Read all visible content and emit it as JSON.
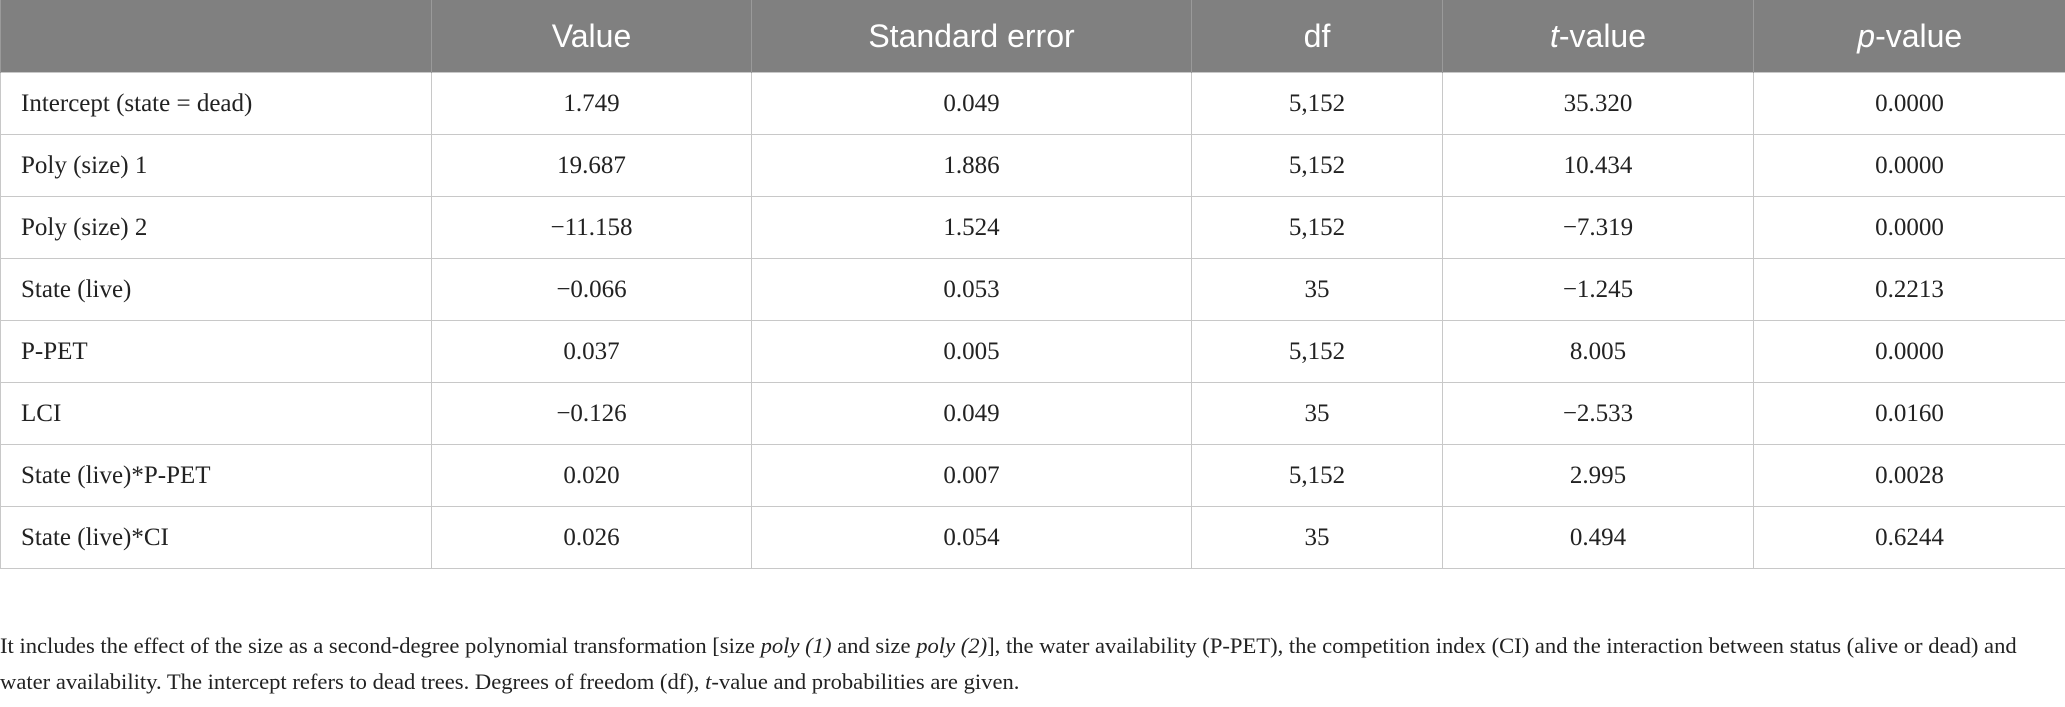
{
  "table": {
    "header": [
      [
        "Value"
      ],
      [
        "Standard error"
      ],
      [
        "df"
      ],
      [
        {
          "italic": "t"
        },
        "-value"
      ],
      [
        {
          "italic": "p"
        },
        "-value"
      ]
    ],
    "rows": [
      [
        "Intercept (state = dead)",
        "1.749",
        "0.049",
        "5,152",
        "35.320",
        "0.0000"
      ],
      [
        "Poly (size) 1",
        "19.687",
        "1.886",
        "5,152",
        "10.434",
        "0.0000"
      ],
      [
        "Poly (size) 2",
        "−11.158",
        "1.524",
        "5,152",
        "−7.319",
        "0.0000"
      ],
      [
        "State (live)",
        "−0.066",
        "0.053",
        "35",
        "−1.245",
        "0.2213"
      ],
      [
        "P-PET",
        "0.037",
        "0.005",
        "5,152",
        "8.005",
        "0.0000"
      ],
      [
        "LCI",
        "−0.126",
        "0.049",
        "35",
        "−2.533",
        "0.0160"
      ],
      [
        "State (live)*P-PET",
        "0.020",
        "0.007",
        "5,152",
        "2.995",
        "0.0028"
      ],
      [
        "State (live)*CI",
        "0.026",
        "0.054",
        "35",
        "0.494",
        "0.6244"
      ]
    ]
  },
  "caption": [
    "It includes the effect of the size as a second-degree polynomial transformation [size ",
    {
      "italic": "poly"
    },
    " ",
    {
      "italic": "(1)"
    },
    " and size ",
    {
      "italic": "poly"
    },
    " ",
    {
      "italic": "(2)"
    },
    "], the water availability (P-PET), the competition index (CI) and the interaction between status (alive or dead) and water availability. The intercept refers to dead trees. Degrees of freedom (df), ",
    {
      "italic": "t"
    },
    "-value and probabilities are given."
  ]
}
